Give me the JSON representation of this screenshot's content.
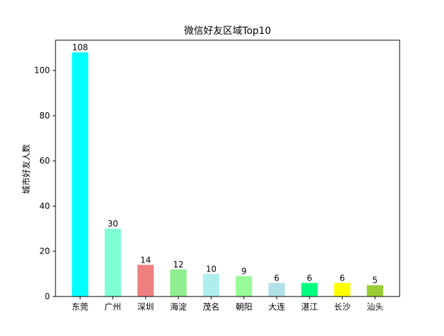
{
  "chart_data": {
    "type": "bar",
    "title": "微信好友区域Top10",
    "xlabel": "",
    "ylabel": "城市好友人数",
    "categories": [
      "东莞",
      "广州",
      "深圳",
      "海淀",
      "茂名",
      "朝阳",
      "大连",
      "湛江",
      "长沙",
      "汕头"
    ],
    "values": [
      108,
      30,
      14,
      12,
      10,
      9,
      6,
      6,
      6,
      5
    ],
    "colors": [
      "#00ffff",
      "#7fffd4",
      "#f08080",
      "#90ee90",
      "#afeeee",
      "#98fb98",
      "#b0e0e6",
      "#00ff7f",
      "#ffff00",
      "#9acd32"
    ],
    "ylim": [
      0,
      113.4
    ],
    "yticks": [
      0,
      20,
      40,
      60,
      80,
      100
    ],
    "grid": false,
    "legend": "none"
  }
}
